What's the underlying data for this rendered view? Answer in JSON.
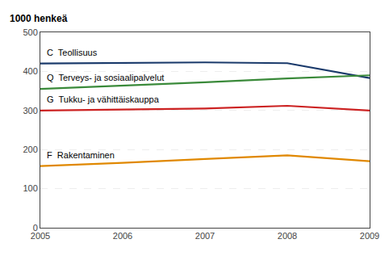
{
  "chart_data": {
    "type": "line",
    "ylabel": "1000 henkeä",
    "x": [
      2005,
      2006,
      2007,
      2008,
      2009
    ],
    "series": [
      {
        "name": "C  Teollisuus",
        "color": "#1a3a6b",
        "values": [
          420,
          422,
          423,
          421,
          383
        ]
      },
      {
        "name": "Q  Terveys- ja sosiaalipalvelut",
        "color": "#3a8a3a",
        "values": [
          355,
          363,
          372,
          382,
          390
        ]
      },
      {
        "name": "G  Tukku- ja vähittäiskauppa",
        "color": "#cc2222",
        "values": [
          300,
          302,
          305,
          312,
          300
        ]
      },
      {
        "name": "F  Rakentaminen",
        "color": "#e08800",
        "values": [
          158,
          166,
          176,
          185,
          170
        ]
      }
    ],
    "xlim": [
      2005,
      2009
    ],
    "xticks": [
      2005,
      2006,
      2007,
      2008,
      2009
    ],
    "ylim": [
      0,
      500
    ],
    "yticks": [
      0,
      100,
      200,
      300,
      400,
      500
    ],
    "grid": true
  }
}
